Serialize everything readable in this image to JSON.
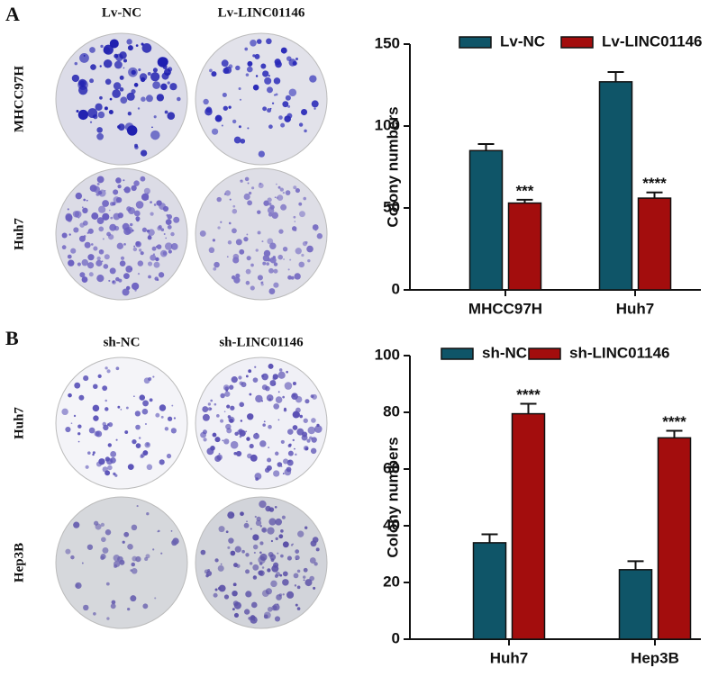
{
  "panels": [
    {
      "letter": "A",
      "columns": [
        "Lv-NC",
        "Lv-LINC01146"
      ],
      "rows": [
        "MHCC97H",
        "Huh7"
      ]
    },
    {
      "letter": "B",
      "columns": [
        "sh-NC",
        "sh-LINC01146"
      ],
      "rows": [
        "Huh7",
        "Hep3B"
      ]
    }
  ],
  "chart_data": [
    {
      "type": "bar",
      "ylabel": "Colony numbers",
      "categories": [
        "MHCC97H",
        "Huh7"
      ],
      "series": [
        {
          "name": "Lv-NC",
          "color": "#0f5568",
          "values": [
            85,
            127
          ],
          "errors": [
            4,
            6
          ]
        },
        {
          "name": "Lv-LINC01146",
          "color": "#a30d0d",
          "values": [
            53,
            56
          ],
          "errors": [
            2,
            3.5
          ],
          "labels": [
            "***",
            "****"
          ]
        }
      ],
      "ylim": [
        0,
        150
      ],
      "yticks": [
        0,
        50,
        100,
        150
      ]
    },
    {
      "type": "bar",
      "ylabel": "Colony numbers",
      "categories": [
        "Huh7",
        "Hep3B"
      ],
      "series": [
        {
          "name": "sh-NC",
          "color": "#0f5568",
          "values": [
            34,
            24.5
          ],
          "errors": [
            3,
            3
          ]
        },
        {
          "name": "sh-LINC01146",
          "color": "#a30d0d",
          "values": [
            79.5,
            71
          ],
          "errors": [
            3.5,
            2.5
          ],
          "labels": [
            "****",
            "****"
          ]
        }
      ],
      "ylim": [
        0,
        100
      ],
      "yticks": [
        0,
        20,
        40,
        60,
        80,
        100
      ]
    }
  ]
}
